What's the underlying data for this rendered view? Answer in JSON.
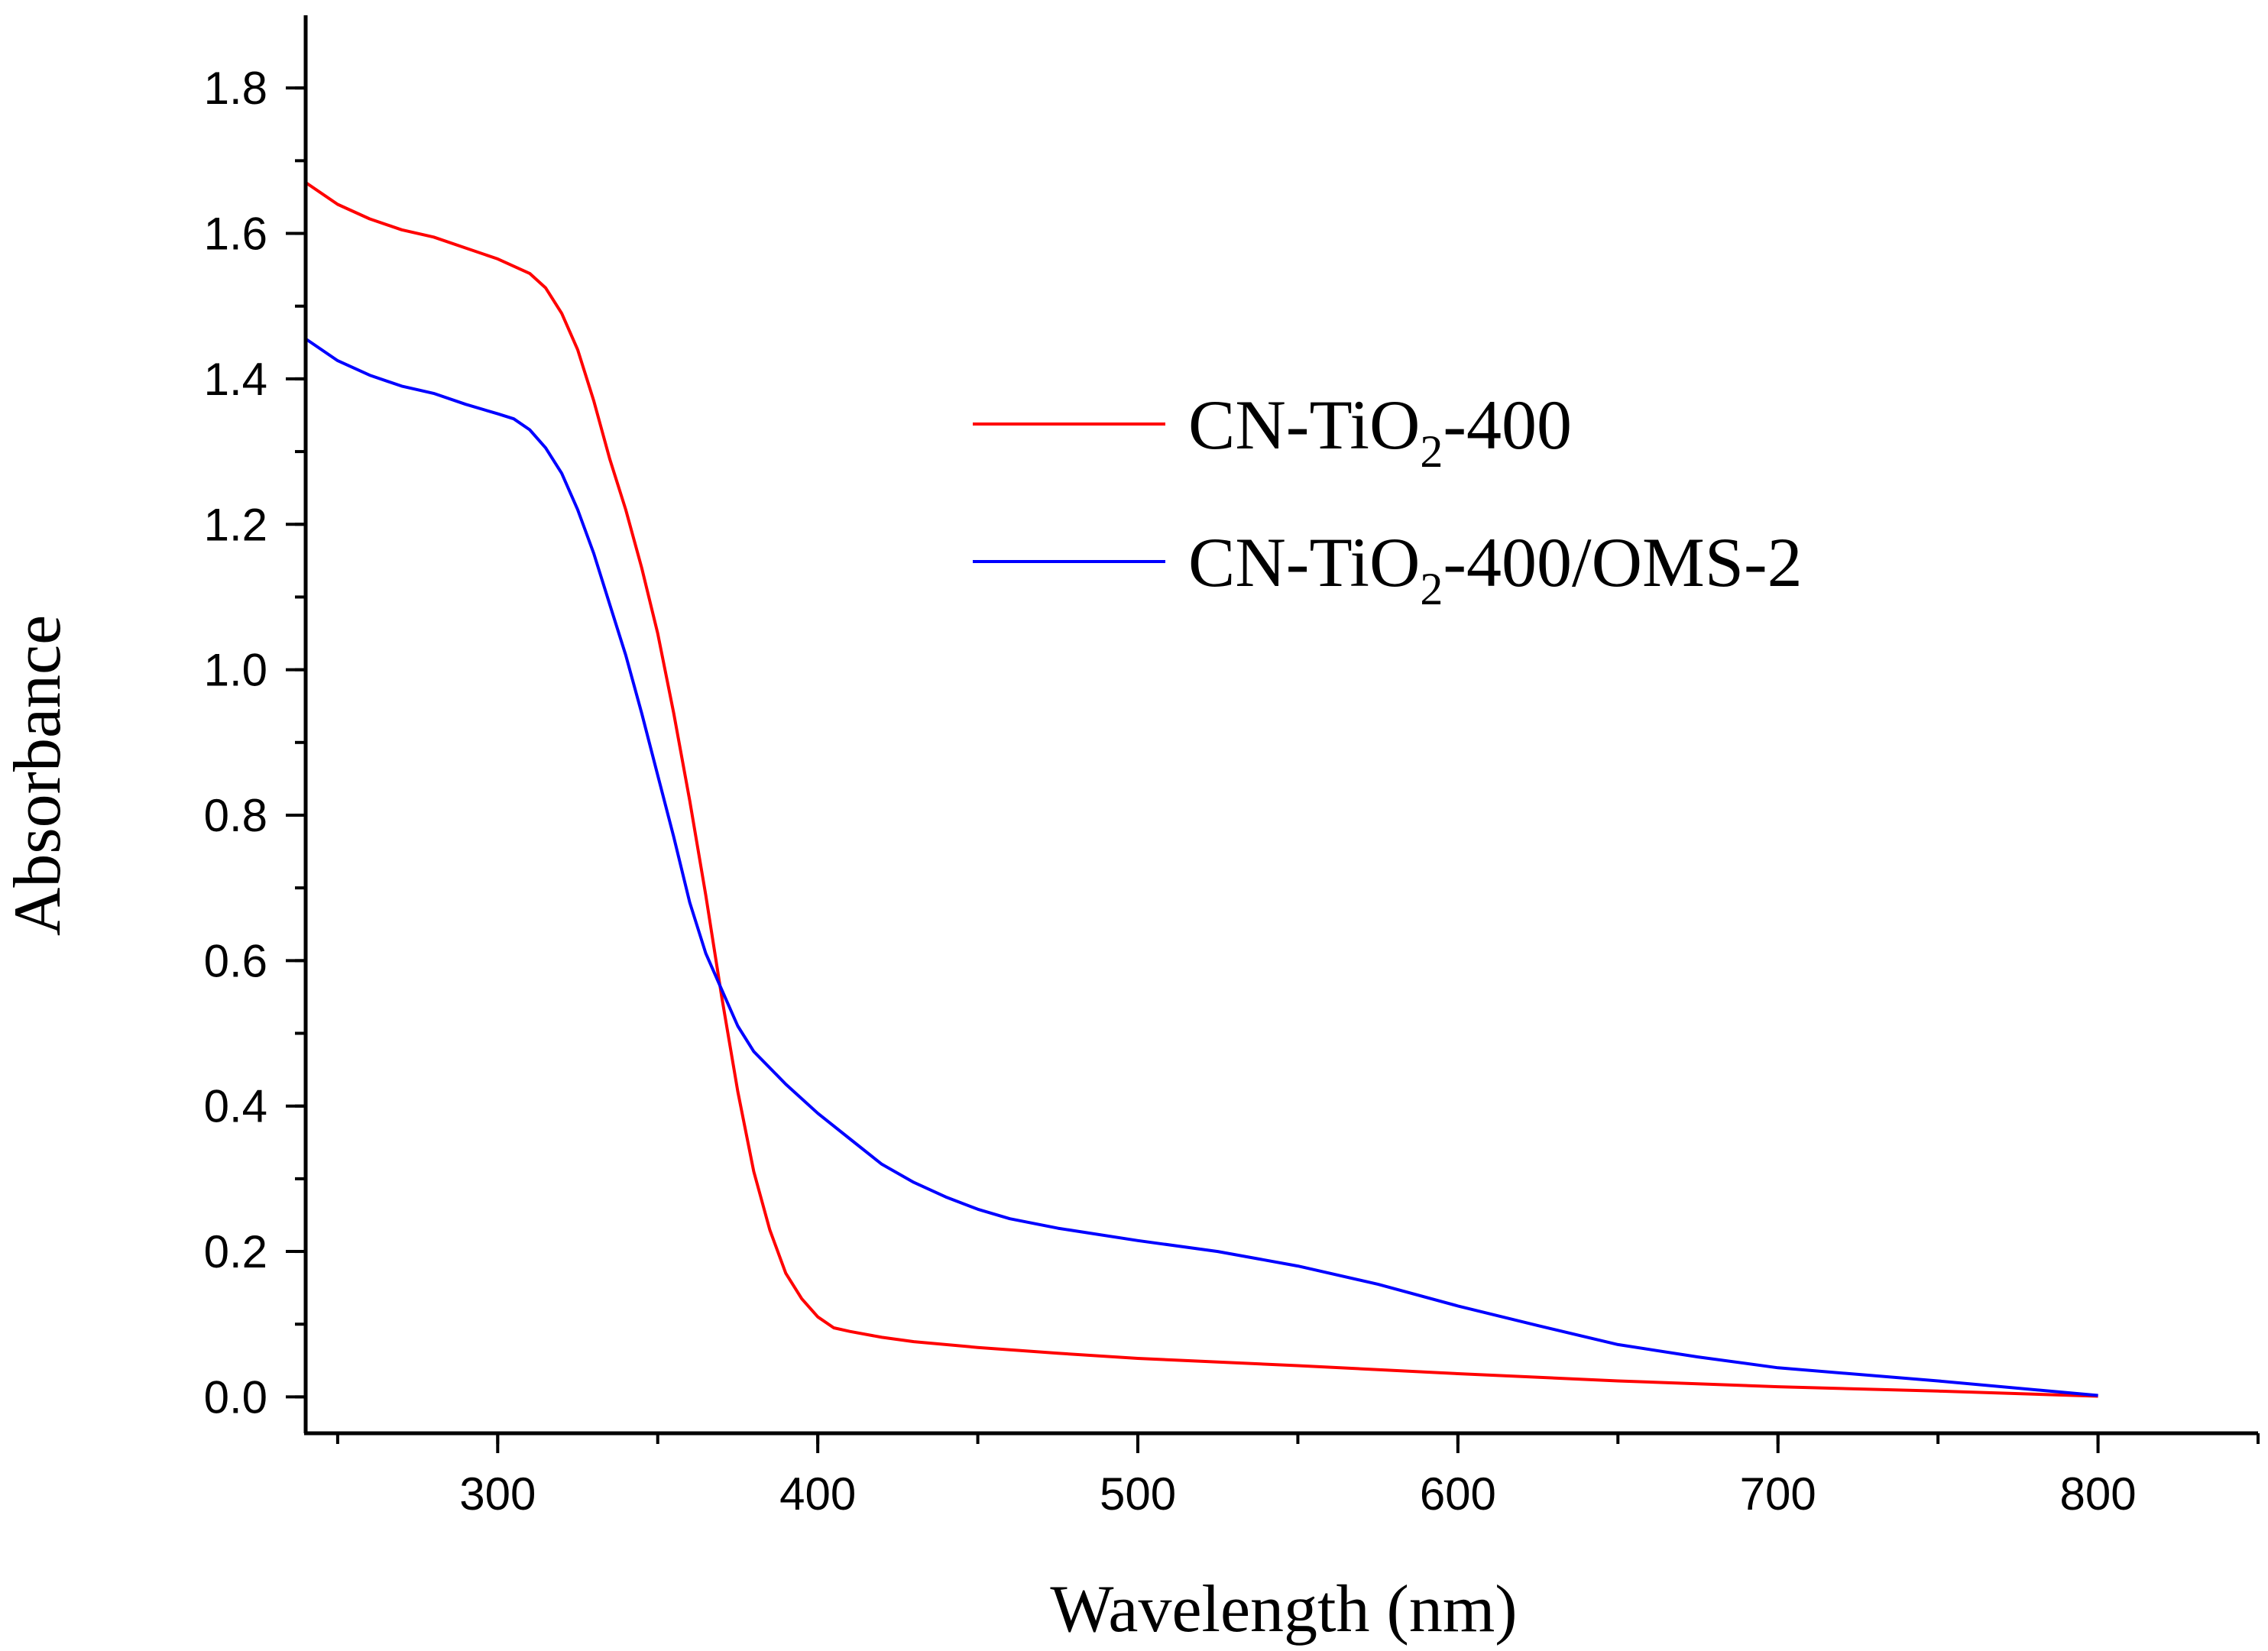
{
  "chart_data": {
    "type": "line",
    "xlabel": "Wavelength (nm)",
    "ylabel": "Absorbance",
    "xlim": [
      240,
      850
    ],
    "ylim": [
      -0.05,
      1.9
    ],
    "x_ticks": [
      {
        "value": 300,
        "label": "300"
      },
      {
        "value": 400,
        "label": "400"
      },
      {
        "value": 500,
        "label": "500"
      },
      {
        "value": 600,
        "label": "600"
      },
      {
        "value": 700,
        "label": "700"
      },
      {
        "value": 800,
        "label": "800"
      }
    ],
    "y_ticks": [
      {
        "value": 0.0,
        "label": "0.0"
      },
      {
        "value": 0.2,
        "label": "0.2"
      },
      {
        "value": 0.4,
        "label": "0.4"
      },
      {
        "value": 0.6,
        "label": "0.6"
      },
      {
        "value": 0.8,
        "label": "0.8"
      },
      {
        "value": 1.0,
        "label": "1.0"
      },
      {
        "value": 1.2,
        "label": "1.2"
      },
      {
        "value": 1.4,
        "label": "1.4"
      },
      {
        "value": 1.6,
        "label": "1.6"
      },
      {
        "value": 1.8,
        "label": "1.8"
      }
    ],
    "x_minor_step": 50,
    "y_minor_step": 0.1,
    "legend_position": "upper-right",
    "series": [
      {
        "name": "CN-TiO2-400",
        "label_parts": {
          "pre": "CN-TiO",
          "sub": "2",
          "post": "-400"
        },
        "color": "#ff0000",
        "points": [
          [
            240,
            1.67
          ],
          [
            250,
            1.64
          ],
          [
            260,
            1.62
          ],
          [
            270,
            1.605
          ],
          [
            280,
            1.595
          ],
          [
            290,
            1.58
          ],
          [
            300,
            1.565
          ],
          [
            310,
            1.545
          ],
          [
            315,
            1.525
          ],
          [
            320,
            1.49
          ],
          [
            325,
            1.44
          ],
          [
            330,
            1.37
          ],
          [
            335,
            1.29
          ],
          [
            340,
            1.22
          ],
          [
            345,
            1.14
          ],
          [
            350,
            1.05
          ],
          [
            355,
            0.94
          ],
          [
            360,
            0.82
          ],
          [
            365,
            0.69
          ],
          [
            370,
            0.55
          ],
          [
            375,
            0.42
          ],
          [
            380,
            0.31
          ],
          [
            385,
            0.23
          ],
          [
            390,
            0.17
          ],
          [
            395,
            0.135
          ],
          [
            400,
            0.11
          ],
          [
            405,
            0.095
          ],
          [
            410,
            0.09
          ],
          [
            420,
            0.082
          ],
          [
            430,
            0.076
          ],
          [
            450,
            0.068
          ],
          [
            475,
            0.06
          ],
          [
            500,
            0.053
          ],
          [
            550,
            0.043
          ],
          [
            600,
            0.032
          ],
          [
            650,
            0.022
          ],
          [
            700,
            0.014
          ],
          [
            750,
            0.008
          ],
          [
            800,
            0.001
          ]
        ]
      },
      {
        "name": "CN-TiO2-400/OMS-2",
        "label_parts": {
          "pre": "CN-TiO",
          "sub": "2",
          "post": "-400/OMS-2"
        },
        "color": "#0000ff",
        "points": [
          [
            240,
            1.455
          ],
          [
            250,
            1.425
          ],
          [
            260,
            1.405
          ],
          [
            270,
            1.39
          ],
          [
            280,
            1.38
          ],
          [
            290,
            1.365
          ],
          [
            300,
            1.352
          ],
          [
            305,
            1.345
          ],
          [
            310,
            1.33
          ],
          [
            315,
            1.305
          ],
          [
            320,
            1.27
          ],
          [
            325,
            1.22
          ],
          [
            330,
            1.16
          ],
          [
            335,
            1.09
          ],
          [
            340,
            1.02
          ],
          [
            345,
            0.94
          ],
          [
            350,
            0.855
          ],
          [
            355,
            0.77
          ],
          [
            360,
            0.68
          ],
          [
            365,
            0.61
          ],
          [
            370,
            0.56
          ],
          [
            375,
            0.51
          ],
          [
            380,
            0.475
          ],
          [
            390,
            0.43
          ],
          [
            400,
            0.39
          ],
          [
            410,
            0.355
          ],
          [
            420,
            0.32
          ],
          [
            430,
            0.295
          ],
          [
            440,
            0.275
          ],
          [
            450,
            0.258
          ],
          [
            460,
            0.245
          ],
          [
            475,
            0.232
          ],
          [
            500,
            0.215
          ],
          [
            525,
            0.2
          ],
          [
            550,
            0.18
          ],
          [
            575,
            0.155
          ],
          [
            600,
            0.125
          ],
          [
            625,
            0.098
          ],
          [
            650,
            0.072
          ],
          [
            675,
            0.055
          ],
          [
            700,
            0.04
          ],
          [
            750,
            0.022
          ],
          [
            800,
            0.002
          ]
        ]
      }
    ]
  }
}
